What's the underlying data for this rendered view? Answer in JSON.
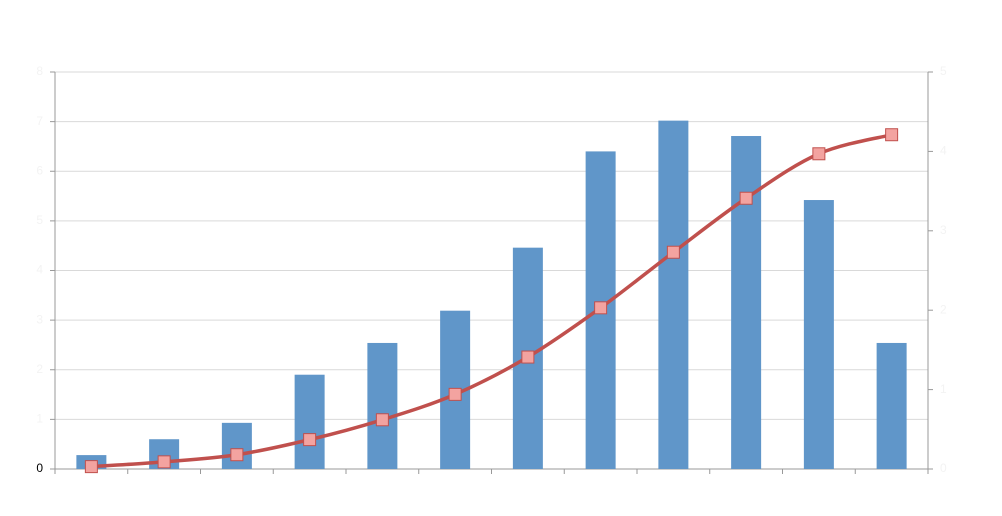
{
  "chart_data": {
    "type": "combo",
    "categories": [
      null,
      null,
      null,
      null,
      null,
      null,
      null,
      null,
      null,
      null,
      null,
      null
    ],
    "series": [
      {
        "type": "bar",
        "color": "#6096c9",
        "values": [
          0.28,
          0.6,
          0.93,
          1.9,
          2.54,
          3.19,
          4.46,
          6.4,
          7.02,
          6.71,
          5.42,
          2.54
        ]
      },
      {
        "type": "line",
        "axis": "y2",
        "color": "#c0504d",
        "marker_fill": "#f3a3a0",
        "values": [
          0.03,
          0.09,
          0.18,
          0.37,
          0.62,
          0.94,
          1.41,
          2.03,
          2.73,
          3.41,
          3.97,
          4.21
        ]
      }
    ],
    "ylim": [
      0,
      8
    ],
    "yticks": [
      0,
      1,
      2,
      3,
      4,
      5,
      6,
      7,
      8
    ],
    "y2lim": [
      0,
      5
    ],
    "y2ticks": [
      0,
      1,
      2,
      3,
      4,
      5
    ],
    "grid": true
  }
}
